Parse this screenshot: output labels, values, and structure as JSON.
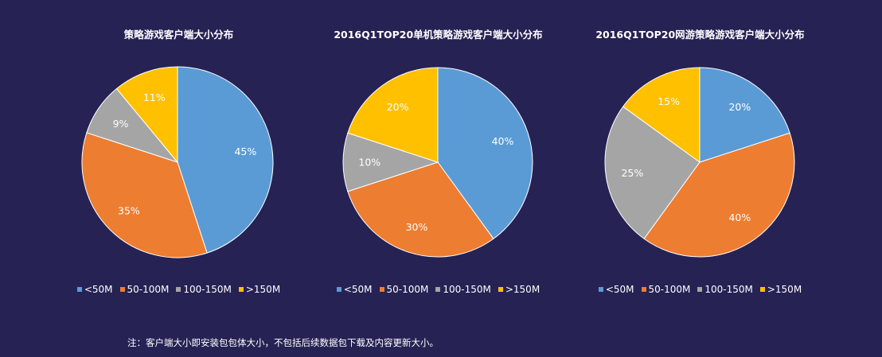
{
  "colors": {
    "background": "#262254",
    "blue": "#5B9BD5",
    "orange": "#ED7D31",
    "gray": "#A5A5A5",
    "gold": "#FFC000"
  },
  "chart_data": [
    {
      "type": "pie",
      "title": "策略游戏客户端大小分布",
      "categories": [
        "<50M",
        "50-100M",
        "100-150M",
        ">150M"
      ],
      "values": [
        45,
        35,
        9,
        11
      ],
      "labels": [
        "45%",
        "35%",
        "9%",
        "11%"
      ],
      "legend": [
        "<50M",
        "50-100M",
        "100-150M",
        ">150M"
      ],
      "legend_position": "bottom"
    },
    {
      "type": "pie",
      "title": "2016Q1TOP20单机策略游戏客户端大小分布",
      "categories": [
        "<50M",
        "50-100M",
        "100-150M",
        ">150M"
      ],
      "values": [
        40,
        30,
        10,
        20
      ],
      "labels": [
        "40%",
        "30%",
        "10%",
        "20%"
      ],
      "legend": [
        "<50M",
        "50-100M",
        "100-150M",
        ">150M"
      ],
      "legend_position": "bottom"
    },
    {
      "type": "pie",
      "title": "2016Q1TOP20网游策略游戏客户端大小分布",
      "categories": [
        "<50M",
        "50-100M",
        "100-150M",
        ">150M"
      ],
      "values": [
        20,
        40,
        25,
        15
      ],
      "labels": [
        "20%",
        "40%",
        "25%",
        "15%"
      ],
      "legend": [
        "<50M",
        "50-100M",
        "100-150M",
        ">150M"
      ],
      "legend_position": "bottom"
    }
  ],
  "footnote": "注：客户端大小即安装包包体大小，不包括后续数据包下载及内容更新大小。"
}
